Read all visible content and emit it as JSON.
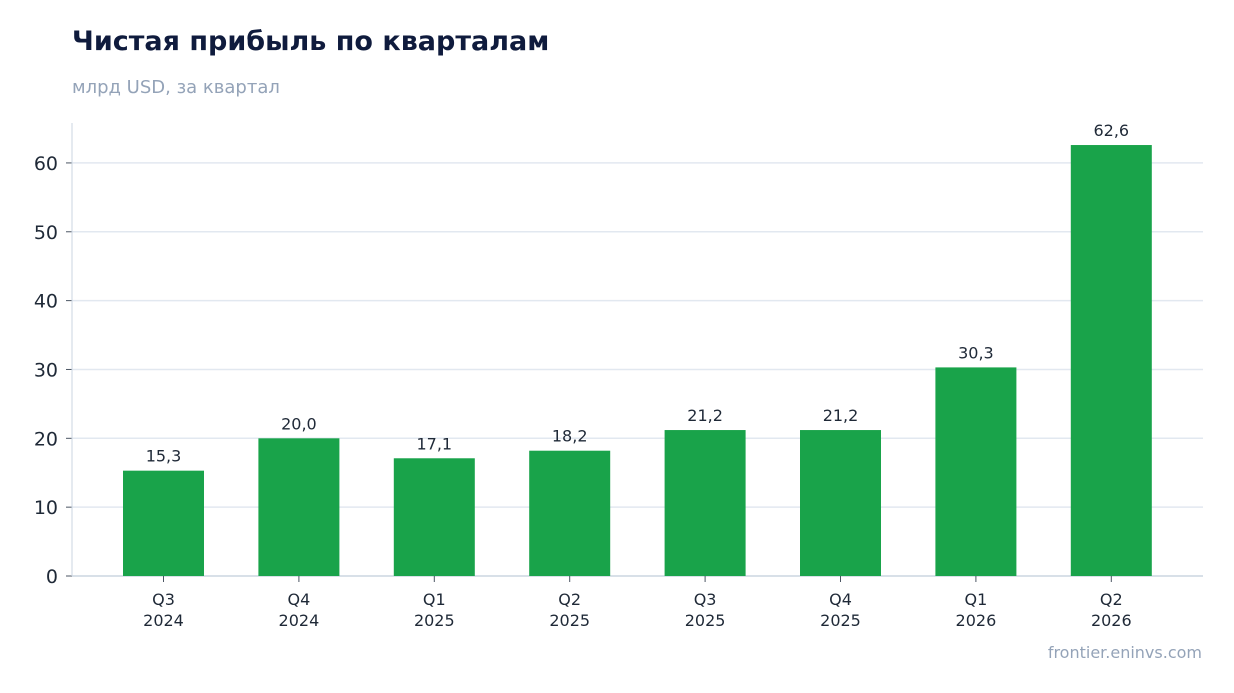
{
  "header": {
    "title": "Чистая прибыль по кварталам",
    "subtitle": "млрд USD, за квартал"
  },
  "footer": {
    "source": "frontier.eninvs.com"
  },
  "colors": {
    "bar": "#19a34a",
    "grid": "#e2e8f0",
    "axis": "#cbd5e1",
    "title": "#0f1b3d",
    "muted": "#94a3b8"
  },
  "chart_data": {
    "type": "bar",
    "title": "Чистая прибыль по кварталам",
    "subtitle": "млрд USD, за квартал",
    "xlabel": "",
    "ylabel": "",
    "categories": [
      [
        "Q3",
        "2024"
      ],
      [
        "Q4",
        "2024"
      ],
      [
        "Q1",
        "2025"
      ],
      [
        "Q2",
        "2025"
      ],
      [
        "Q3",
        "2025"
      ],
      [
        "Q4",
        "2025"
      ],
      [
        "Q1",
        "2026"
      ],
      [
        "Q2",
        "2026"
      ]
    ],
    "values": [
      15.3,
      20.0,
      17.1,
      18.2,
      21.2,
      21.2,
      30.3,
      62.6
    ],
    "value_labels": [
      "15,3",
      "20,0",
      "17,1",
      "18,2",
      "21,2",
      "21,2",
      "30,3",
      "62,6"
    ],
    "ylim": [
      0,
      65.8
    ],
    "yticks": [
      0,
      10,
      20,
      30,
      40,
      50,
      60
    ],
    "grid": true,
    "legend": "none"
  }
}
